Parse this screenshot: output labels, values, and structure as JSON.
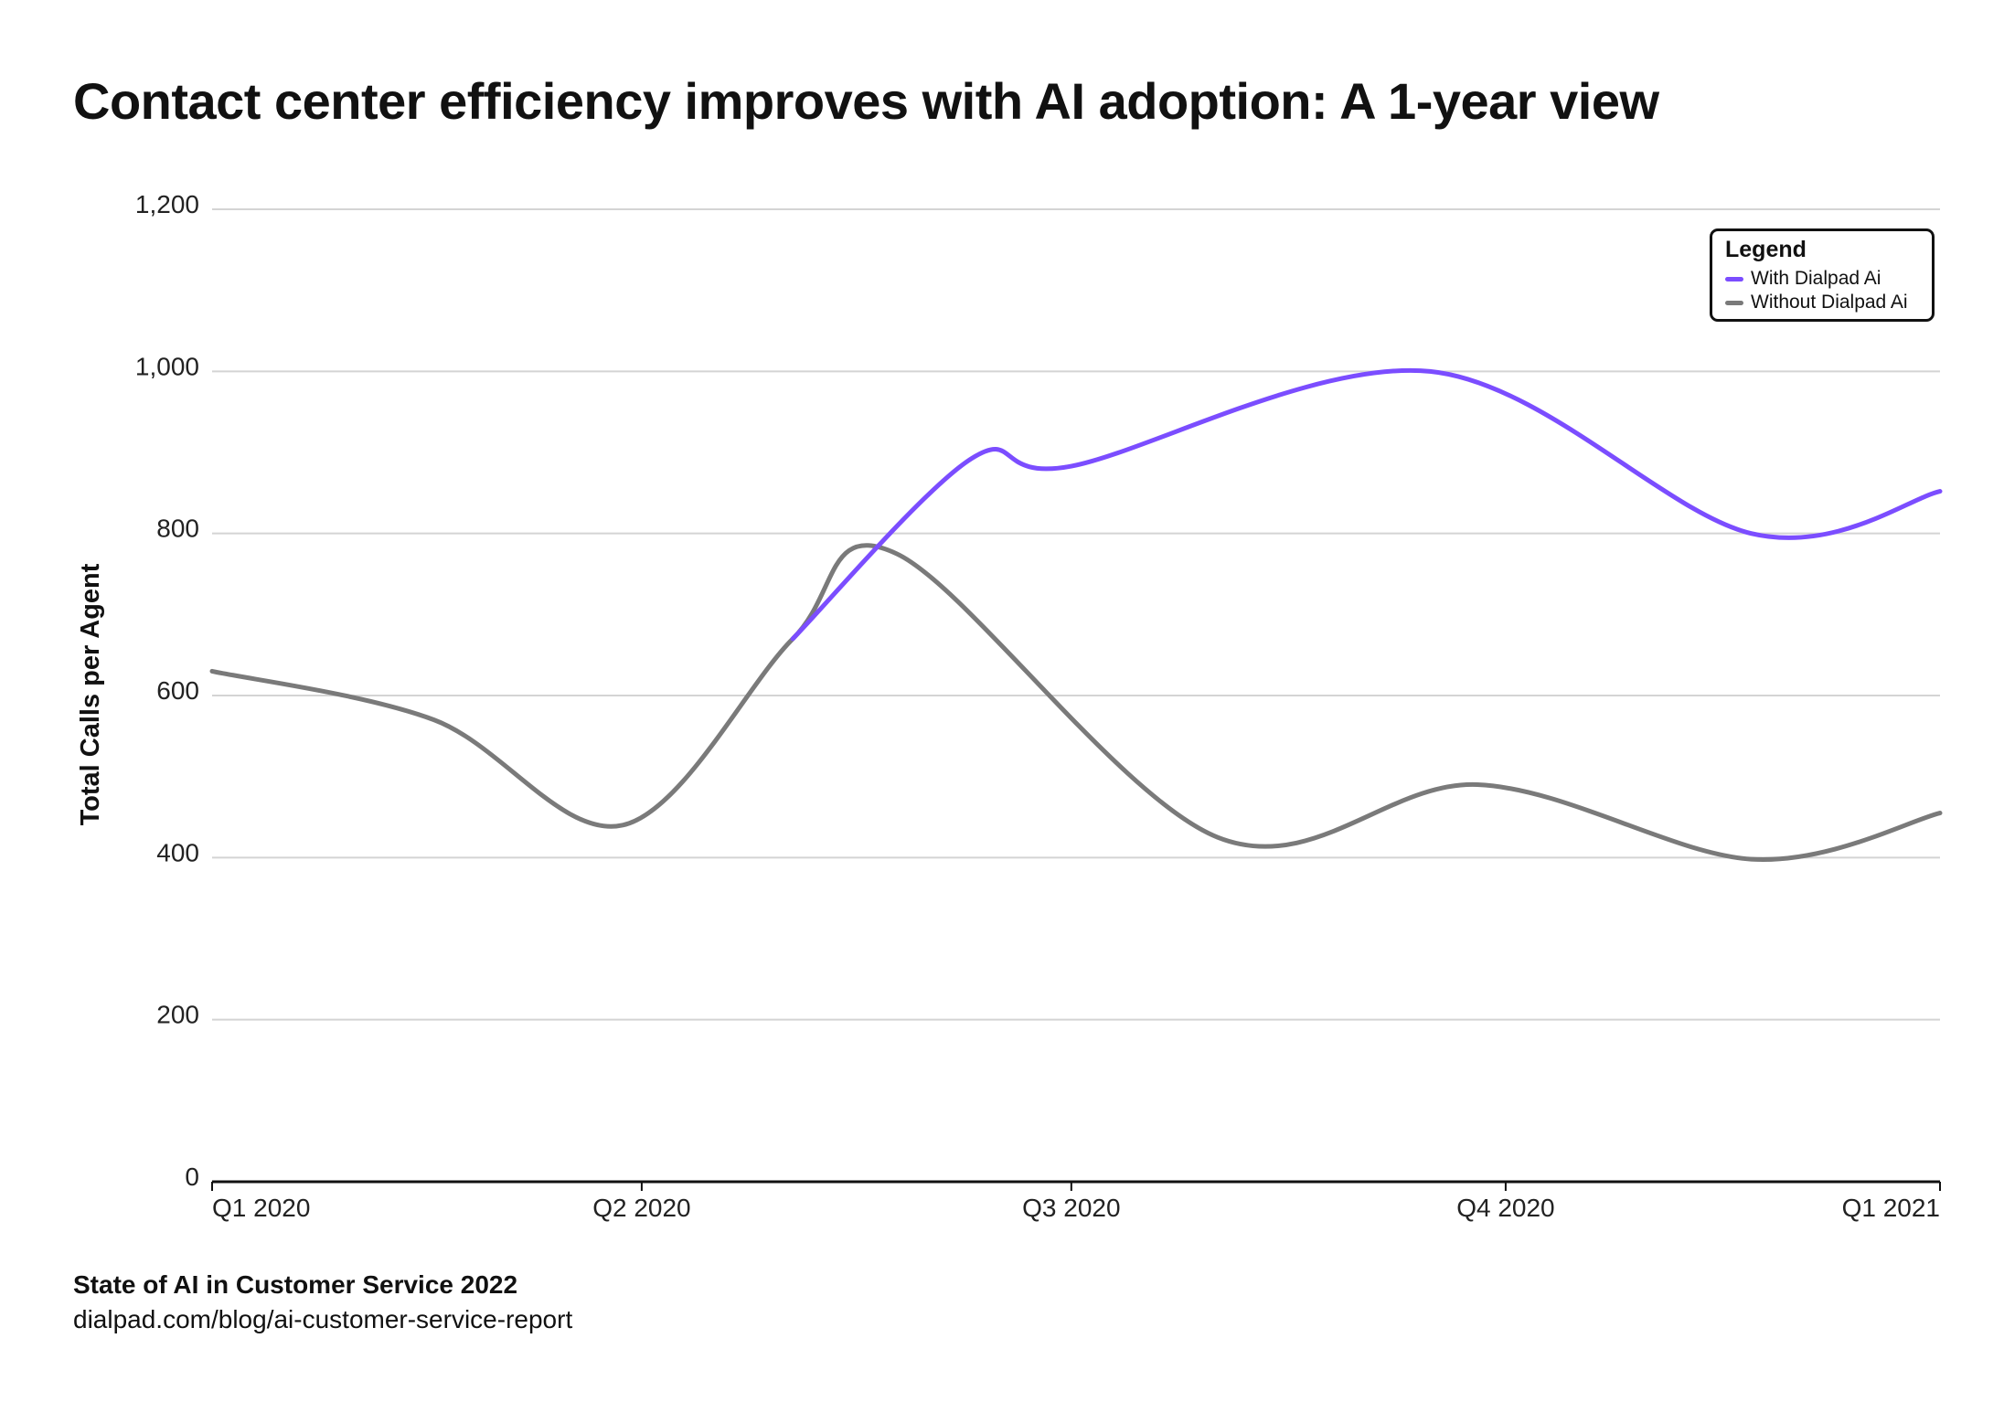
{
  "chart_data": {
    "type": "line",
    "title": "Contact center efficiency improves with AI adoption: A 1-year view",
    "xlabel": "",
    "ylabel": "Total Calls per Agent",
    "ylim": [
      0,
      1200
    ],
    "xlim": [
      "2020-01-01",
      "2021-01-01"
    ],
    "yticks": [
      0,
      200,
      400,
      600,
      800,
      1000,
      1200
    ],
    "ytick_labels": [
      "0",
      "200",
      "400",
      "600",
      "800",
      "1,000",
      "1,200"
    ],
    "xticks": [
      "2020-01-01",
      "2020-04-01",
      "2020-07-01",
      "2020-10-01",
      "2021-01-01"
    ],
    "xtick_labels": [
      "Q1 2020",
      "Q2 2020",
      "Q3 2020",
      "Q4 2020",
      "Q1 2021"
    ],
    "grid": "horizontal",
    "legend": {
      "title": "Legend",
      "placement": "top-right"
    },
    "series": [
      {
        "name": "With Dialpad Ai",
        "color": "#7b4dff",
        "x": [
          "2020-05-03",
          "2020-06-10",
          "2020-07-01",
          "2020-09-15",
          "2020-11-22",
          "2021-01-01"
        ],
        "y": [
          670,
          893,
          883,
          1000,
          800,
          852
        ]
      },
      {
        "name": "Without Dialpad Ai",
        "color": "#7a7a7a",
        "x": [
          "2020-01-01",
          "2020-02-17",
          "2020-03-28",
          "2020-05-03",
          "2020-05-25",
          "2020-08-01",
          "2020-09-25",
          "2020-11-22",
          "2021-01-01"
        ],
        "y": [
          630,
          570,
          440,
          670,
          775,
          425,
          490,
          398,
          455
        ]
      }
    ]
  },
  "source": {
    "name": "State of AI in Customer Service 2022",
    "url": "dialpad.com/blog/ai-customer-service-report"
  }
}
